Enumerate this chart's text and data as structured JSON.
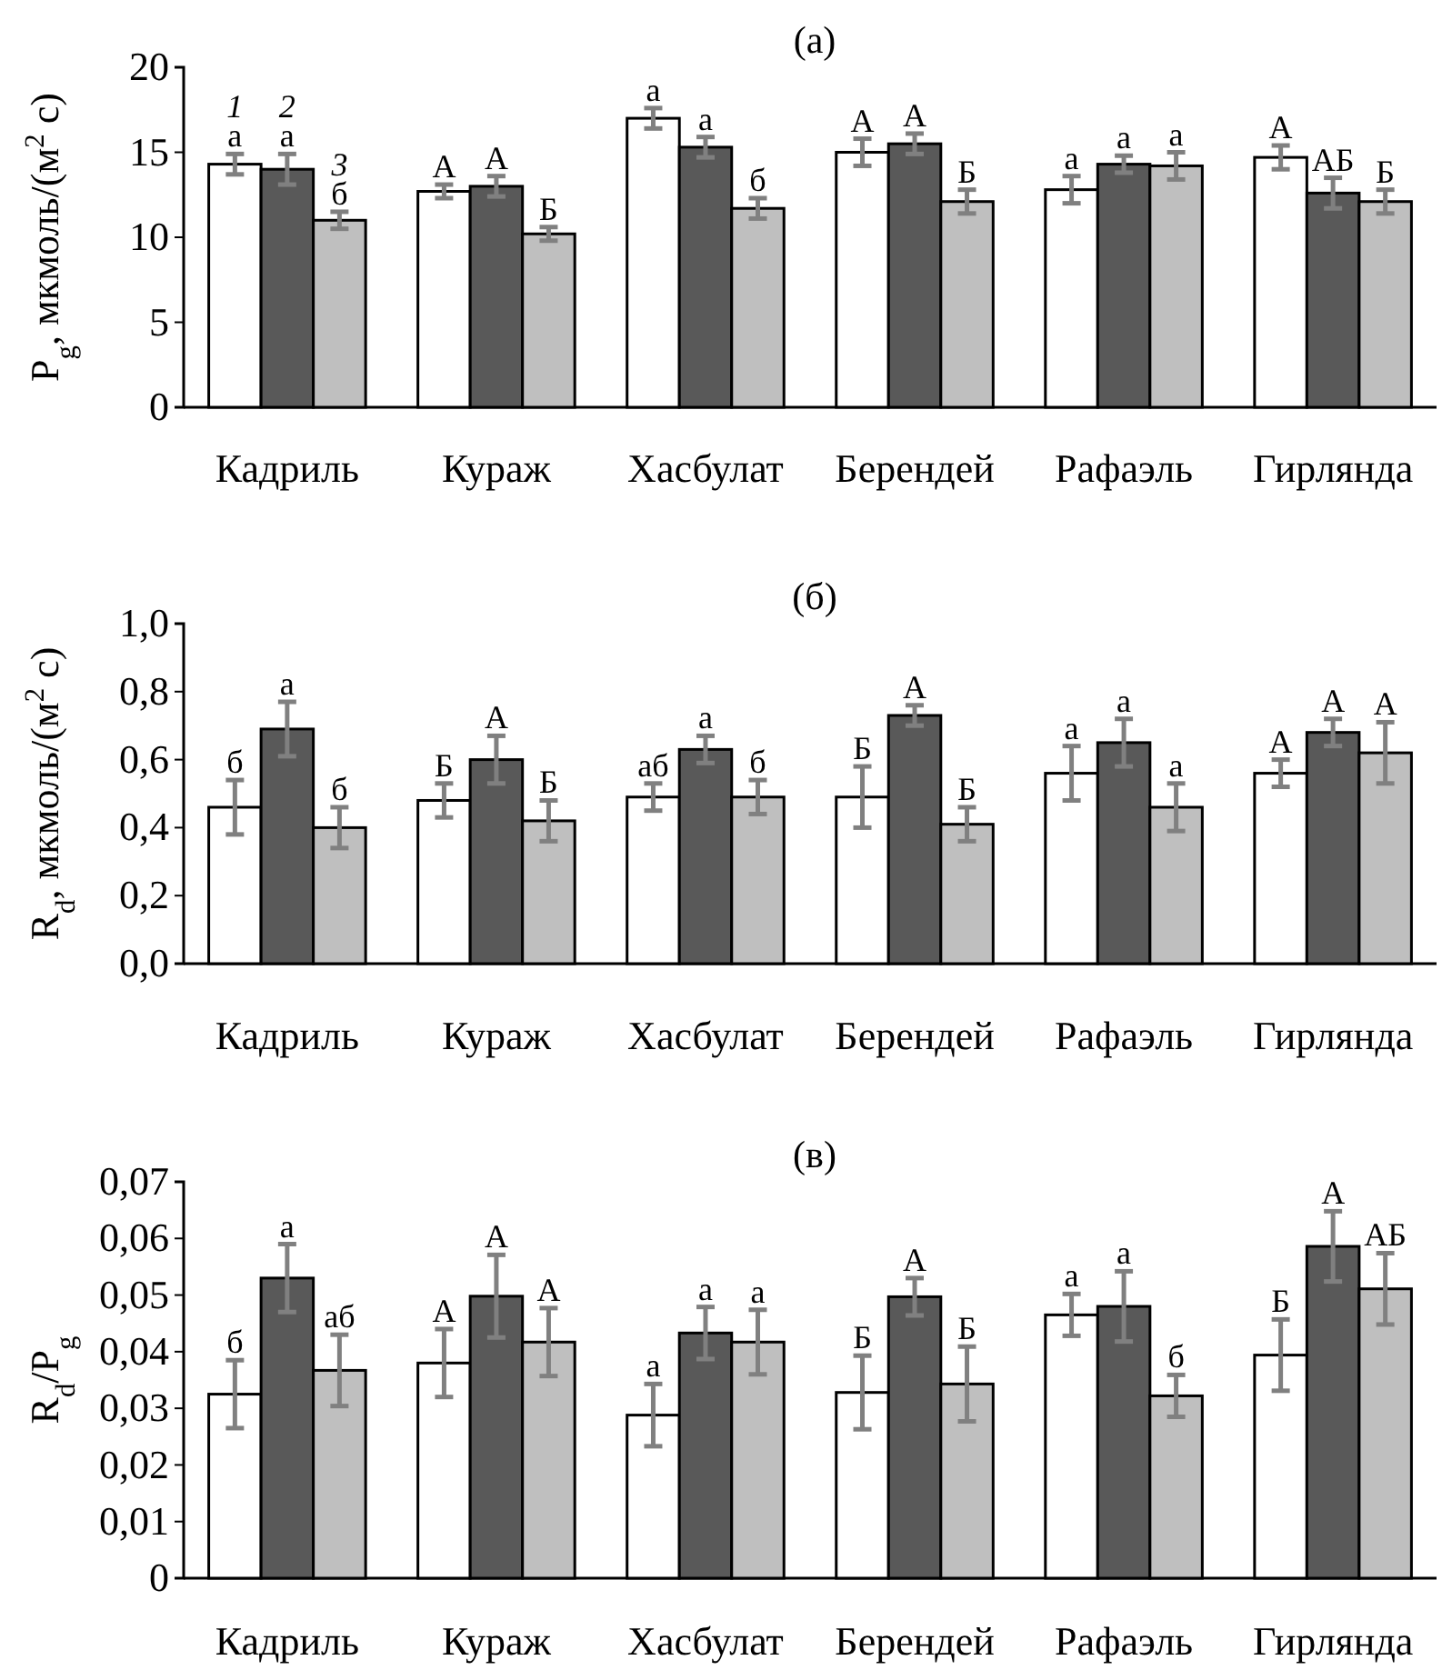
{
  "chart_data": [
    {
      "type": "bar",
      "title": "(а)",
      "ylabel": "P$_{g}$, мкмоль/(м$^{2}$ с)",
      "categories": [
        "Кадриль",
        "Кураж",
        "Хасбулат",
        "Берендей",
        "Рафаэль",
        "Гирлянда"
      ],
      "ylim": [
        0,
        20
      ],
      "yticks": [
        0,
        5,
        10,
        15,
        20
      ],
      "grid": false,
      "series": [
        {
          "name": "1",
          "color": "#ffffff",
          "values": [
            14.3,
            12.7,
            17.0,
            15.0,
            12.8,
            14.7
          ],
          "errors": [
            0.6,
            0.4,
            0.6,
            0.8,
            0.8,
            0.7
          ],
          "value_labels": [
            "а",
            "А",
            "а",
            "А",
            "а",
            "А"
          ]
        },
        {
          "name": "2",
          "color": "#595959",
          "values": [
            14.0,
            13.0,
            15.3,
            15.5,
            14.3,
            12.6
          ],
          "errors": [
            0.9,
            0.6,
            0.6,
            0.6,
            0.5,
            0.9
          ],
          "value_labels": [
            "а",
            "А",
            "а",
            "А",
            "а",
            "АБ"
          ]
        },
        {
          "name": "3",
          "color": "#bfbfbf",
          "values": [
            11.0,
            10.2,
            11.7,
            12.1,
            14.2,
            12.1
          ],
          "errors": [
            0.5,
            0.4,
            0.6,
            0.7,
            0.8,
            0.7
          ],
          "value_labels": [
            "б",
            "Б",
            "б",
            "Б",
            "а",
            "Б"
          ]
        }
      ]
    },
    {
      "type": "bar",
      "title": "(б)",
      "ylabel": "R$_{d}$, мкмоль/(м$^{2}$ с)",
      "categories": [
        "Кадриль",
        "Кураж",
        "Хасбулат",
        "Берендей",
        "Рафаэль",
        "Гирлянда"
      ],
      "ylim": [
        0,
        1
      ],
      "yticks": [
        {
          "value": 0,
          "label": "0,0"
        },
        {
          "value": 0.2,
          "label": "0,2"
        },
        {
          "value": 0.4,
          "label": "0,4"
        },
        {
          "value": 0.6,
          "label": "0,6"
        },
        {
          "value": 0.8,
          "label": "0,8"
        },
        {
          "value": 1,
          "label": "1,0"
        }
      ],
      "grid": false,
      "series": [
        {
          "color": "#ffffff",
          "values": [
            0.46,
            0.48,
            0.49,
            0.49,
            0.56,
            0.56
          ],
          "errors": [
            0.08,
            0.05,
            0.04,
            0.09,
            0.08,
            0.04
          ],
          "value_labels": [
            "б",
            "Б",
            "аб",
            "Б",
            "а",
            "А"
          ]
        },
        {
          "color": "#595959",
          "values": [
            0.69,
            0.6,
            0.63,
            0.73,
            0.65,
            0.68
          ],
          "errors": [
            0.08,
            0.07,
            0.04,
            0.03,
            0.07,
            0.04
          ],
          "value_labels": [
            "а",
            "А",
            "а",
            "А",
            "а",
            "А"
          ]
        },
        {
          "color": "#bfbfbf",
          "values": [
            0.4,
            0.42,
            0.49,
            0.41,
            0.46,
            0.62
          ],
          "errors": [
            0.06,
            0.06,
            0.05,
            0.05,
            0.07,
            0.09
          ],
          "value_labels": [
            "б",
            "Б",
            "б",
            "Б",
            "а",
            "А"
          ]
        }
      ]
    },
    {
      "type": "bar",
      "title": "(в)",
      "ylabel": "R$_{d}$/P$_{g}$",
      "categories": [
        "Кадриль",
        "Кураж",
        "Хасбулат",
        "Берендей",
        "Рафаэль",
        "Гирлянда"
      ],
      "ylim": [
        0,
        0.07
      ],
      "yticks": [
        0,
        {
          "value": 0.01,
          "label": "0,01"
        },
        {
          "value": 0.02,
          "label": "0,02"
        },
        {
          "value": 0.03,
          "label": "0,03"
        },
        {
          "value": 0.04,
          "label": "0,04"
        },
        {
          "value": 0.05,
          "label": "0,05"
        },
        {
          "value": 0.06,
          "label": "0,06"
        },
        {
          "value": 0.07,
          "label": "0,07"
        }
      ],
      "grid": false,
      "series": [
        {
          "color": "#ffffff",
          "values": [
            0.0325,
            0.038,
            0.0288,
            0.0328,
            0.0465,
            0.0394
          ],
          "errors": [
            0.006,
            0.006,
            0.0055,
            0.0065,
            0.0037,
            0.0063
          ],
          "value_labels": [
            "б",
            "А",
            "а",
            "Б",
            "а",
            "Б"
          ]
        },
        {
          "color": "#595959",
          "values": [
            0.053,
            0.0498,
            0.0433,
            0.0497,
            0.048,
            0.0586
          ],
          "errors": [
            0.006,
            0.0073,
            0.0046,
            0.0033,
            0.0062,
            0.0062
          ],
          "value_labels": [
            "а",
            "А",
            "а",
            "А",
            "а",
            "А"
          ]
        },
        {
          "color": "#bfbfbf",
          "values": [
            0.0367,
            0.0417,
            0.0417,
            0.0343,
            0.0322,
            0.0511
          ],
          "errors": [
            0.0063,
            0.006,
            0.0057,
            0.0066,
            0.0037,
            0.0063
          ],
          "value_labels": [
            "аб",
            "А",
            "а",
            "Б",
            "б",
            "АБ"
          ]
        }
      ]
    }
  ]
}
